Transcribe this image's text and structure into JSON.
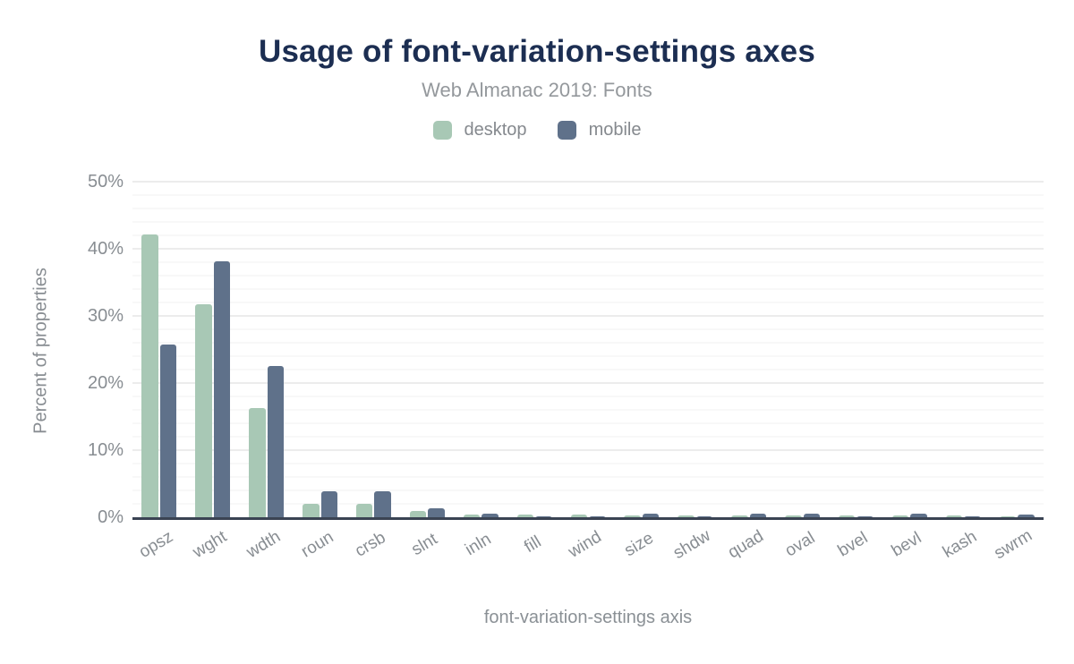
{
  "header": {
    "title": "Usage of font-variation-settings axes",
    "subtitle": "Web Almanac 2019: Fonts"
  },
  "colors": {
    "title": "#1c2e52",
    "desktop": "#a8c8b5",
    "mobile": "#5f718a",
    "axis_text": "#888d92",
    "baseline": "#3a4353",
    "grid_major": "#ececec",
    "grid_minor": "#f8f8f8"
  },
  "chart_data": {
    "type": "bar",
    "title": "Usage of font-variation-settings axes",
    "subtitle": "Web Almanac 2019: Fonts",
    "categories": [
      "opsz",
      "wght",
      "wdth",
      "roun",
      "crsb",
      "slnt",
      "inln",
      "fill",
      "wind",
      "size",
      "shdw",
      "quad",
      "oval",
      "bvel",
      "bevl",
      "kash",
      "swrm"
    ],
    "series": [
      {
        "name": "desktop",
        "color": "#a8c8b5",
        "values": [
          42.2,
          31.8,
          16.3,
          2.0,
          2.0,
          0.9,
          0.4,
          0.4,
          0.4,
          0.3,
          0.3,
          0.3,
          0.3,
          0.3,
          0.3,
          0.3,
          0.2
        ]
      },
      {
        "name": "mobile",
        "color": "#5f718a",
        "values": [
          25.7,
          38.2,
          22.5,
          3.9,
          3.9,
          1.4,
          0.6,
          0.1,
          0.1,
          0.6,
          0.1,
          0.6,
          0.6,
          0.1,
          0.6,
          0.1,
          0.4
        ]
      }
    ],
    "xlabel": "font-variation-settings axis",
    "ylabel": "Percent of properties",
    "ylim": [
      0,
      50
    ],
    "yticks": [
      0,
      10,
      20,
      30,
      40,
      50
    ],
    "ytick_suffix": "%",
    "minor_grid_step": 2,
    "grid": true,
    "legend_position": "top"
  }
}
